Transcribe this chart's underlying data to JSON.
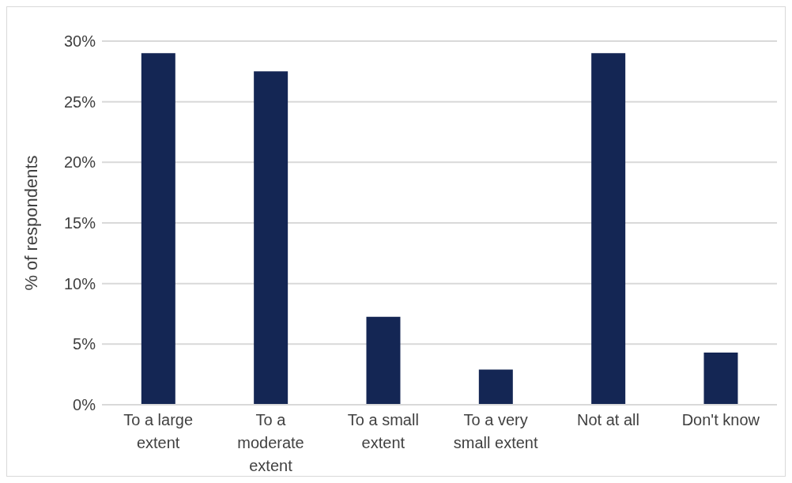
{
  "chart_data": {
    "type": "bar",
    "ylabel": "% of respondents",
    "categories": [
      "To a large extent",
      "To a moderate extent",
      "To a small extent",
      "To a very small extent",
      "Not at all",
      "Don't know"
    ],
    "values": [
      29.0,
      27.5,
      7.25,
      2.9,
      29.0,
      4.3
    ],
    "color": "#142654",
    "ylim": [
      0,
      30
    ],
    "yticks": [
      {
        "value": 0,
        "label": "0%"
      },
      {
        "value": 5,
        "label": "5%"
      },
      {
        "value": 10,
        "label": "10%"
      },
      {
        "value": 15,
        "label": "15%"
      },
      {
        "value": 20,
        "label": "20%"
      },
      {
        "value": 25,
        "label": "25%"
      },
      {
        "value": 30,
        "label": "30%"
      }
    ],
    "grid": "y"
  }
}
